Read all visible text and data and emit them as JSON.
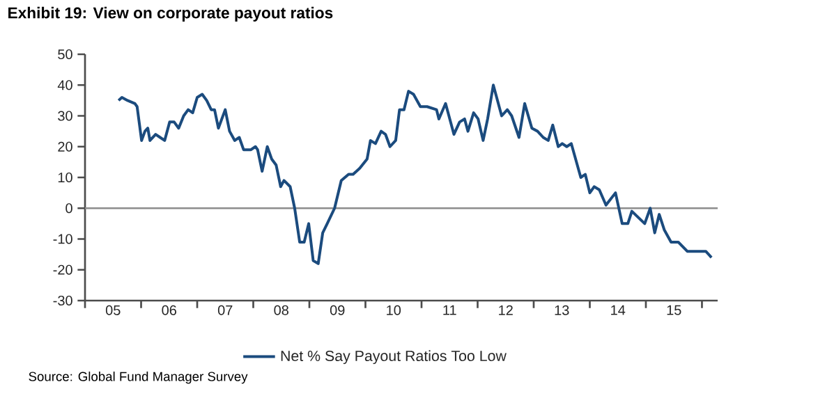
{
  "chart_data": {
    "type": "line",
    "title": "Exhibit 19: View on corporate payout ratios",
    "x": [
      "2005-08-06",
      "2005-08-26",
      "2005-10-04",
      "2005-11-20",
      "2005-12-05",
      "2006-01-04",
      "2006-01-24",
      "2006-02-13",
      "2006-02-26",
      "2006-04-04",
      "2006-05-03",
      "2006-06-02",
      "2006-07-04",
      "2006-08-03",
      "2006-09-02",
      "2006-10-04",
      "2006-11-03",
      "2006-12-02",
      "2007-01-01",
      "2007-02-03",
      "2007-03-02",
      "2007-04-01",
      "2007-04-21",
      "2007-05-16",
      "2007-07-01",
      "2007-07-27",
      "2007-09-02",
      "2007-10-01",
      "2007-10-27",
      "2007-12-15",
      "2008-01-14",
      "2008-01-27",
      "2008-02-26",
      "2008-04-01",
      "2008-04-27",
      "2008-05-26",
      "2008-06-25",
      "2008-07-17",
      "2008-08-26",
      "2008-09-25",
      "2008-10-27",
      "2008-11-26",
      "2008-12-25",
      "2009-01-24",
      "2009-02-26",
      "2009-03-25",
      "2009-04-24",
      "2009-06-12",
      "2009-07-24",
      "2009-09-12",
      "2009-10-11",
      "2009-11-23",
      "2010-01-11",
      "2010-02-03",
      "2010-03-05",
      "2010-04-11",
      "2010-05-09",
      "2010-06-08",
      "2010-07-14",
      "2010-08-09",
      "2010-09-08",
      "2010-10-07",
      "2010-11-09",
      "2010-12-22",
      "2011-02-06",
      "2011-04-07",
      "2011-04-21",
      "2011-06-05",
      "2011-07-27",
      "2011-09-05",
      "2011-10-07",
      "2011-10-27",
      "2011-12-05",
      "2012-01-04",
      "2012-02-06",
      "2012-03-05",
      "2012-04-11",
      "2012-06-05",
      "2012-07-11",
      "2012-08-09",
      "2012-09-25",
      "2012-11-03",
      "2012-12-18",
      "2013-01-24",
      "2013-03-02",
      "2013-04-04",
      "2013-05-03",
      "2013-06-08",
      "2013-07-04",
      "2013-08-03",
      "2013-09-02",
      "2013-11-03",
      "2013-12-02",
      "2014-01-01",
      "2014-01-27",
      "2014-03-02",
      "2014-04-14",
      "2014-06-15",
      "2014-07-27",
      "2014-09-05",
      "2014-10-01",
      "2014-12-22",
      "2015-01-27",
      "2015-02-26",
      "2015-03-25",
      "2015-04-27",
      "2015-06-12",
      "2015-07-27",
      "2015-09-25",
      "2015-11-13",
      "2015-12-18",
      "2016-01-24",
      "2016-03-02"
    ],
    "series": [
      {
        "name": "Net % Say Payout Ratios Too Low",
        "color": "#1b4b7e",
        "values": [
          35,
          36,
          35,
          34,
          33,
          22,
          25,
          26,
          22,
          24,
          23,
          22,
          28,
          28,
          26,
          30,
          32,
          31,
          36,
          37,
          35,
          32,
          32,
          26,
          32,
          25,
          22,
          23,
          19,
          19,
          20,
          19,
          12,
          20,
          16,
          14,
          7,
          9,
          7,
          0,
          -11,
          -11,
          -5,
          -17,
          -18,
          -8,
          -5,
          0,
          9,
          11,
          11,
          13,
          16,
          22,
          21,
          25,
          24,
          20,
          22,
          32,
          32,
          38,
          37,
          33,
          33,
          32,
          29,
          34,
          24,
          28,
          29,
          25,
          31,
          29,
          22,
          29,
          40,
          30,
          32,
          30,
          23,
          34,
          26,
          25,
          23,
          22,
          27,
          20,
          21,
          20,
          21,
          10,
          11,
          5,
          7,
          6,
          1,
          5,
          -5,
          -5,
          -1,
          -5,
          0,
          -8,
          -2,
          -7,
          -11,
          -11,
          -14,
          -14,
          -14,
          -14,
          -16
        ]
      }
    ],
    "xlim": [
      "2005-01-01",
      "2016-04-11"
    ],
    "xticks": [
      {
        "value": "2005-01-01",
        "label": null
      },
      {
        "value": "2005-07-01",
        "label": "05"
      },
      {
        "value": "2006-01-01",
        "label": null
      },
      {
        "value": "2006-07-01",
        "label": "06"
      },
      {
        "value": "2007-01-01",
        "label": null
      },
      {
        "value": "2007-07-01",
        "label": "07"
      },
      {
        "value": "2008-01-01",
        "label": null
      },
      {
        "value": "2008-07-01",
        "label": "08"
      },
      {
        "value": "2009-01-01",
        "label": null
      },
      {
        "value": "2009-07-01",
        "label": "09"
      },
      {
        "value": "2010-01-01",
        "label": null
      },
      {
        "value": "2010-07-01",
        "label": "10"
      },
      {
        "value": "2011-01-01",
        "label": null
      },
      {
        "value": "2011-07-01",
        "label": "11"
      },
      {
        "value": "2012-01-01",
        "label": null
      },
      {
        "value": "2012-07-01",
        "label": "12"
      },
      {
        "value": "2013-01-01",
        "label": null
      },
      {
        "value": "2013-07-01",
        "label": "13"
      },
      {
        "value": "2014-01-01",
        "label": null
      },
      {
        "value": "2014-07-01",
        "label": "14"
      },
      {
        "value": "2015-01-01",
        "label": null
      },
      {
        "value": "2015-07-01",
        "label": "15"
      },
      {
        "value": "2016-01-01",
        "label": null
      }
    ],
    "ylim": [
      -30,
      50
    ],
    "yticks": [
      -30,
      -20,
      -10,
      0,
      10,
      20,
      30,
      40,
      50
    ],
    "ref_lines": [
      {
        "axis": "y",
        "value": 0,
        "color": "#8c8c8c"
      }
    ],
    "legend": "bottom",
    "line_style": "solid",
    "marker": "none",
    "annotations": [
      "Source: Global Fund Manager Survey"
    ]
  }
}
